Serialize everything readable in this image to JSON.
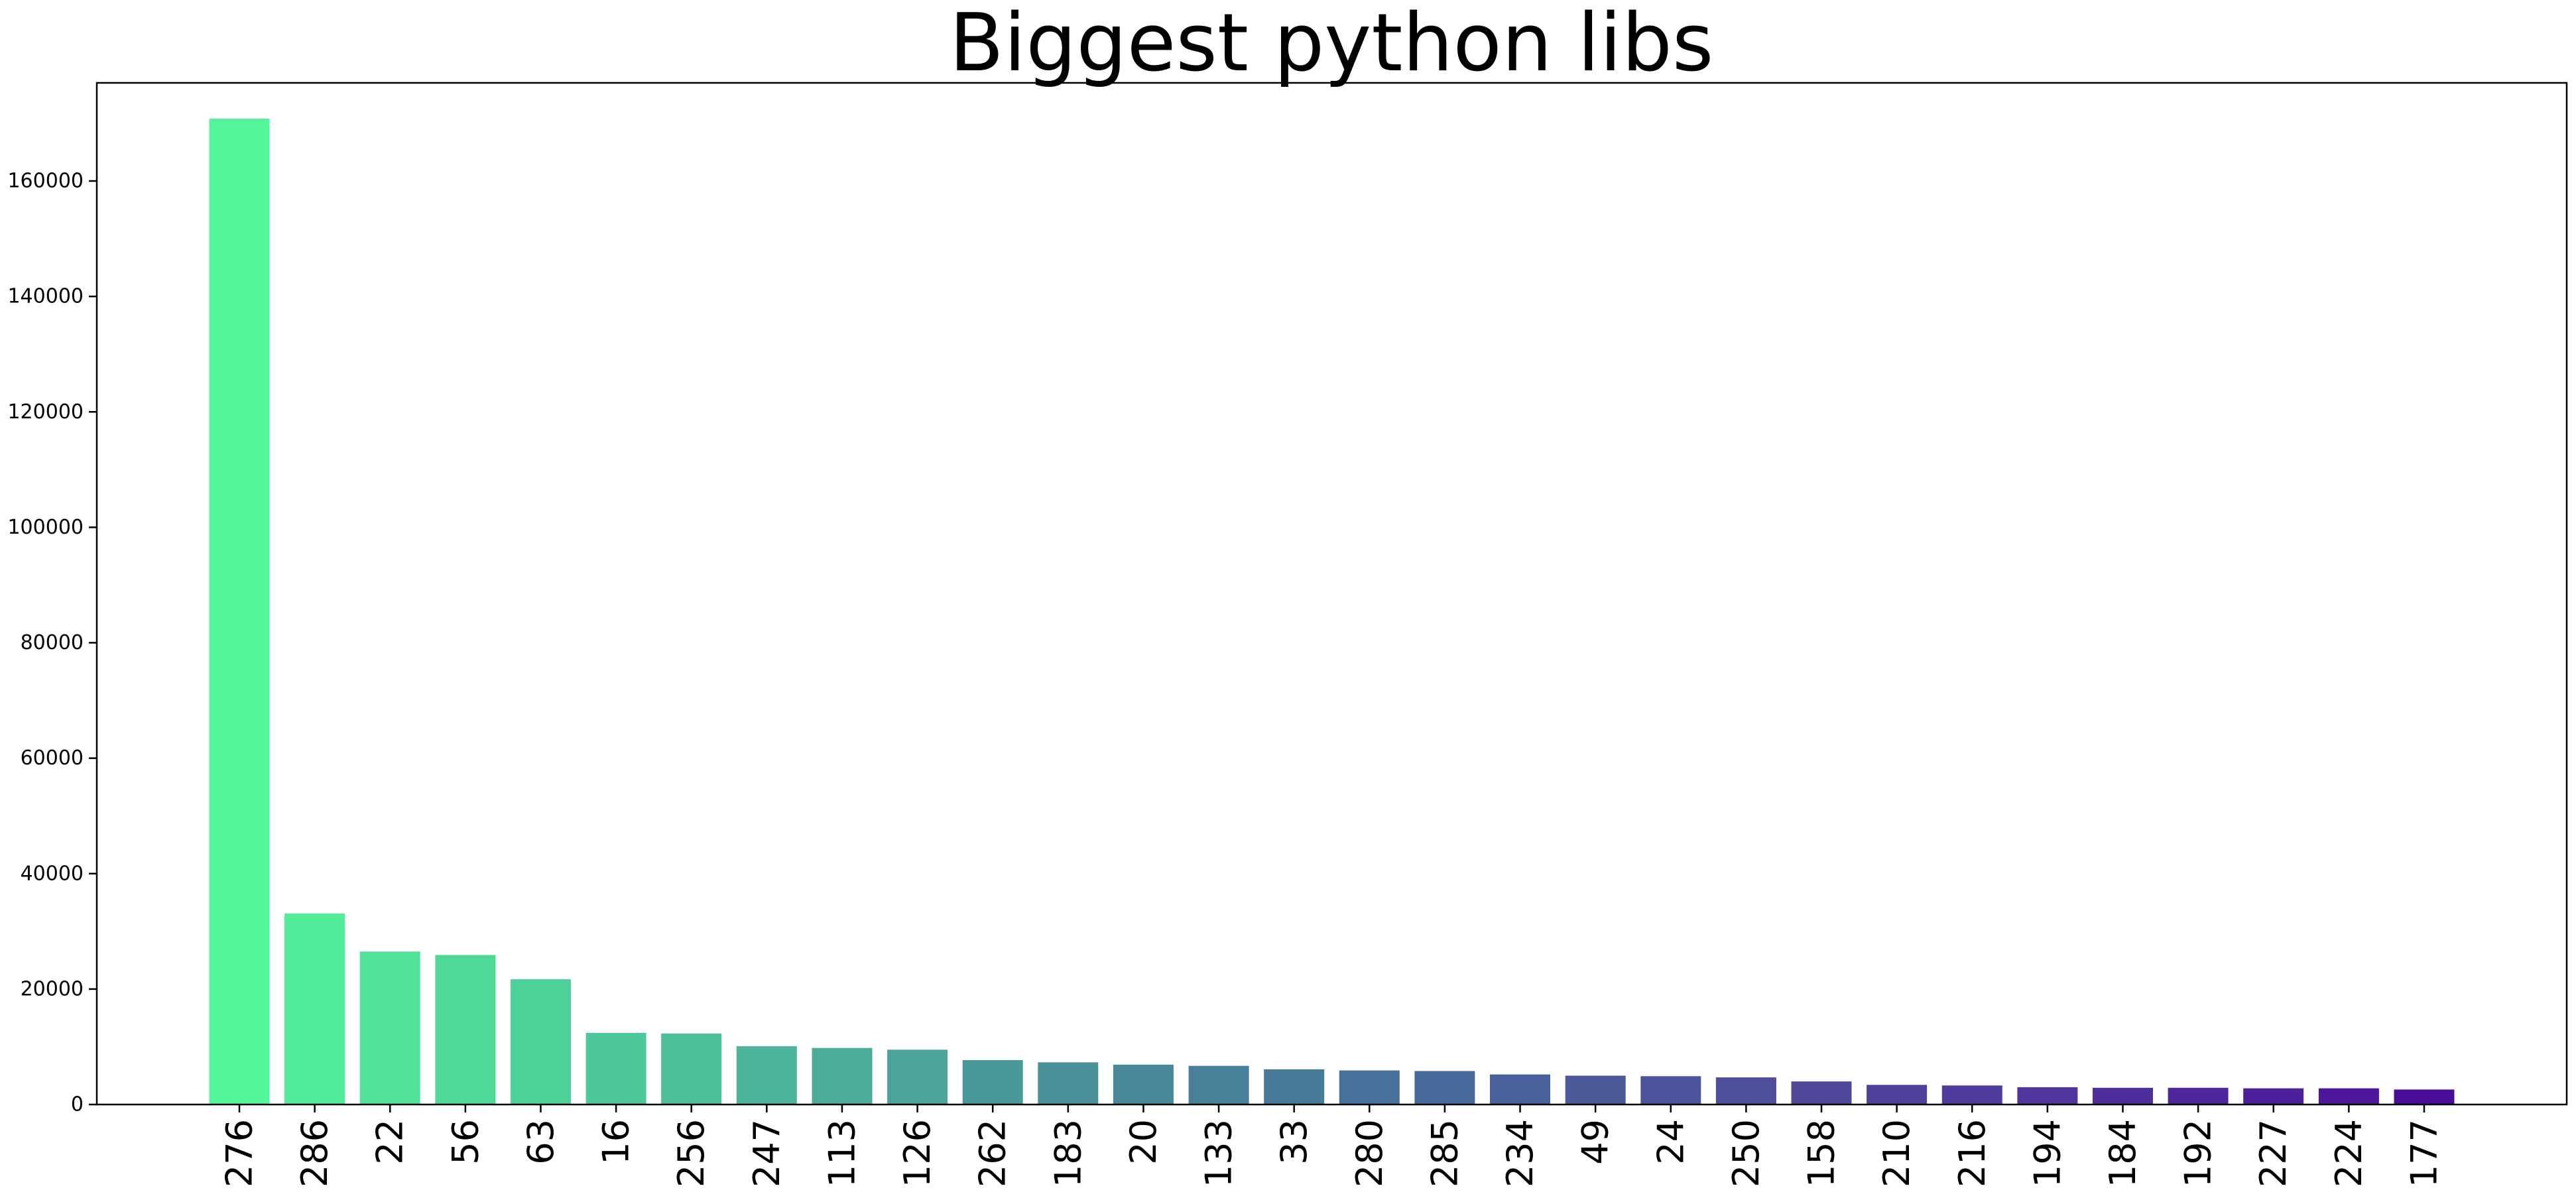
{
  "chart_data": {
    "type": "bar",
    "title": "Biggest python libs",
    "xlabel": "",
    "ylabel": "",
    "ylim": [
      0,
      177000
    ],
    "yticks": [
      0,
      20000,
      40000,
      60000,
      80000,
      100000,
      120000,
      140000,
      160000
    ],
    "ytick_labels": [
      "0",
      "20000",
      "40000",
      "60000",
      "80000",
      "100000",
      "120000",
      "140000",
      "160000"
    ],
    "categories": [
      "276",
      "286",
      "22",
      "56",
      "63",
      "16",
      "256",
      "247",
      "113",
      "126",
      "262",
      "183",
      "20",
      "133",
      "33",
      "280",
      "285",
      "234",
      "49",
      "24",
      "250",
      "158",
      "210",
      "216",
      "194",
      "184",
      "192",
      "227",
      "224",
      "177"
    ],
    "values": [
      170800,
      33100,
      26500,
      25900,
      21700,
      12400,
      12300,
      10100,
      9800,
      9500,
      7700,
      7300,
      6900,
      6700,
      6100,
      5900,
      5800,
      5200,
      5000,
      4900,
      4700,
      4000,
      3400,
      3300,
      3000,
      2900,
      2900,
      2800,
      2800,
      2600
    ],
    "colors": [
      "#52f59a",
      "#51eb9a",
      "#50e399",
      "#4fd999",
      "#4ed099",
      "#4ec79a",
      "#4dbe9a",
      "#4db59a",
      "#4cac9a",
      "#4ba39a",
      "#4a999a",
      "#4a9099",
      "#49879a",
      "#488099",
      "#487a9a",
      "#47719a",
      "#476a9a",
      "#4a6199",
      "#4b5a99",
      "#4b549a",
      "#4e4e9a",
      "#4e479b",
      "#4e409a",
      "#4f3c9c",
      "#50359c",
      "#4f2e9c",
      "#4e279b",
      "#4e1f9b",
      "#4d169c",
      "#4b0c9a"
    ],
    "grid": false,
    "legend": "none"
  }
}
